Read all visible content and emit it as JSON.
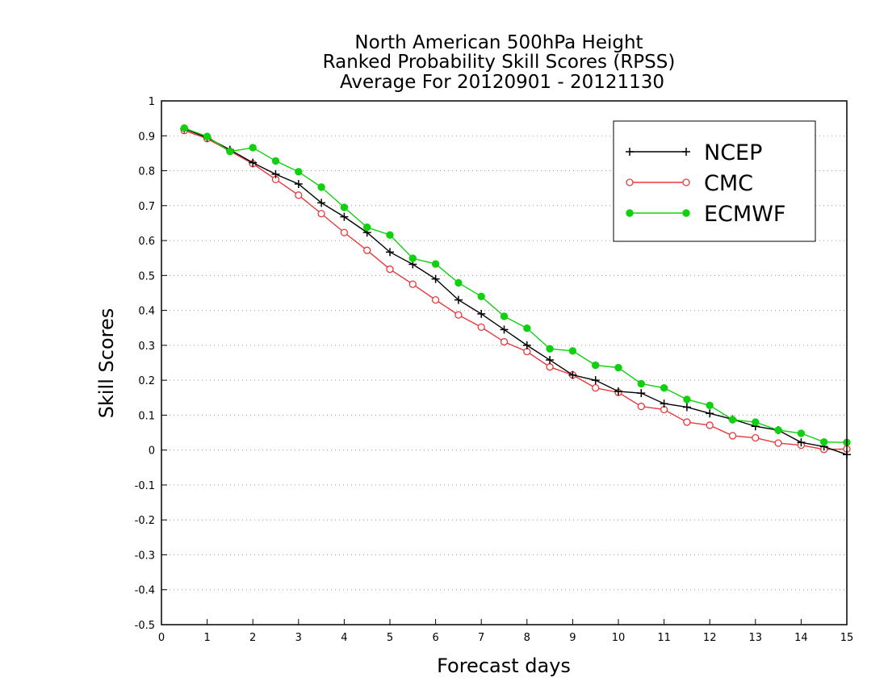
{
  "chart_data": {
    "type": "line",
    "title": [
      "North American 500hPa Height",
      "Ranked Probability Skill Scores (RPSS)",
      "Average For 20120901 - 20121130"
    ],
    "xlabel": "Forecast days",
    "ylabel": "Skill Scores",
    "xlim": [
      0,
      15
    ],
    "ylim": [
      -0.5,
      1
    ],
    "xticks": [
      "0",
      "1",
      "2",
      "3",
      "4",
      "5",
      "6",
      "7",
      "8",
      "9",
      "10",
      "11",
      "12",
      "13",
      "14",
      "15"
    ],
    "yticks": [
      "1",
      "0.9",
      "0.8",
      "0.7",
      "0.6",
      "0.5",
      "0.4",
      "0.3",
      "0.2",
      "0.1",
      "0",
      "-0.1",
      "-0.2",
      "-0.3",
      "-0.4",
      "-0.5"
    ],
    "grid": true,
    "legend_position": "top-right",
    "x": [
      0.5,
      1,
      1.5,
      2,
      2.5,
      3,
      3.5,
      4,
      4.5,
      5,
      5.5,
      6,
      6.5,
      7,
      7.5,
      8,
      8.5,
      9,
      9.5,
      10,
      10.5,
      11,
      11.5,
      12,
      12.5,
      13,
      13.5,
      14,
      14.5,
      15
    ],
    "series": [
      {
        "name": "NCEP",
        "color": "#000000",
        "marker": "plus",
        "values": [
          0.92,
          0.895,
          0.86,
          0.823,
          0.79,
          0.762,
          0.708,
          0.668,
          0.623,
          0.567,
          0.532,
          0.49,
          0.43,
          0.39,
          0.345,
          0.3,
          0.258,
          0.215,
          0.2,
          0.168,
          0.163,
          0.133,
          0.123,
          0.105,
          0.088,
          0.068,
          0.057,
          0.022,
          0.01,
          -0.013
        ]
      },
      {
        "name": "CMC",
        "color": "#e8393c",
        "marker": "circle-open",
        "values": [
          0.915,
          0.892,
          0.856,
          0.82,
          0.775,
          0.73,
          0.677,
          0.623,
          0.572,
          0.518,
          0.475,
          0.43,
          0.387,
          0.352,
          0.31,
          0.282,
          0.238,
          0.215,
          0.178,
          0.165,
          0.125,
          0.116,
          0.08,
          0.071,
          0.041,
          0.035,
          0.02,
          0.014,
          0.002,
          0.003
        ]
      },
      {
        "name": "ECMWF",
        "color": "#10d010",
        "marker": "circle-filled",
        "values": [
          0.922,
          0.898,
          0.855,
          0.866,
          0.828,
          0.797,
          0.753,
          0.695,
          0.638,
          0.616,
          0.549,
          0.533,
          0.479,
          0.44,
          0.383,
          0.349,
          0.29,
          0.284,
          0.243,
          0.236,
          0.19,
          0.178,
          0.145,
          0.128,
          0.087,
          0.08,
          0.057,
          0.048,
          0.023,
          0.022
        ]
      }
    ]
  }
}
